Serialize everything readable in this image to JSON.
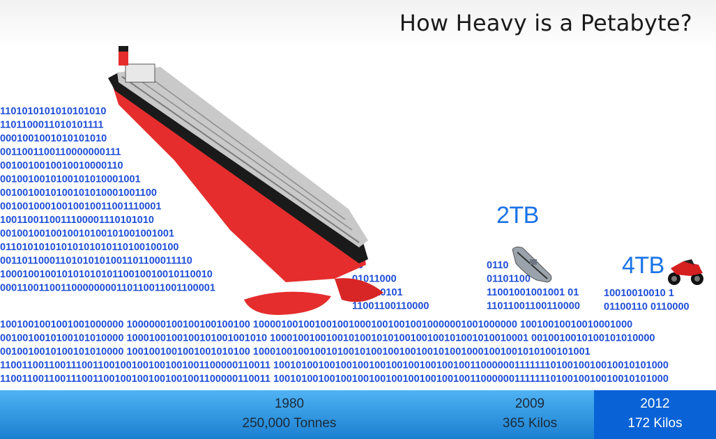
{
  "title": "How Heavy is a Petabyte?",
  "binary_lines": {
    "left": [
      "1101010101010101010",
      "1101100011010101111",
      "0001001001010101010",
      "0011001100110000000111",
      "0010010010010010000110",
      "0010010010100101010001001",
      "0010010010100101010001001100",
      "00100100010010010011001110001",
      "1001100110011100001110101010",
      "0010010010010010100101001001001",
      "01101010101010101010110100100100",
      "00110110001101010101001101100011110",
      "10001001001010101010110010010010110010",
      "000110011001100000000110110011001100001"
    ],
    "mid_right": [
      "10",
      "01011000",
      "001010101",
      "11001100110000"
    ],
    "mid_2009": [
      "0110",
      "01101100",
      "11001001001001 01",
      "11011001100110000"
    ],
    "right_2012": [
      "10010010010 1",
      "01100110 0110000"
    ],
    "full": [
      "1001001001001001000000 1000000100100100100100 10000100100100100100010010010010000001001000000 10010010010010001000",
      "0010010010100101010000 1000100100100101001001010 1000100100100101001010100100100101001010010001 0010010010100101010000",
      "0010010010100101010000 1001001001001001010100 100010010010010100101001001001001010010001001001010100101001",
      "1100110011001110011001001001001001001100000110011 10010100100100100100100100100100100110000001111111010010010010010101000",
      "1100110011001110011001001001001001001100000110011 10010100100100100100100100100100100110000001111111010010010010010101000"
    ]
  },
  "capacities": [
    "2TB",
    "4TB"
  ],
  "timeline": [
    {
      "year": "1980",
      "weight": "250,000 Tonnes",
      "active": false
    },
    {
      "year": "2009",
      "weight": "365 Kilos",
      "active": false
    },
    {
      "year": "2012",
      "weight": "172 Kilos",
      "active": true
    }
  ],
  "colors": {
    "binary": "#1f4fd8",
    "capacity": "#1a73e8",
    "hull_red": "#e03030",
    "footer_active": "#0a63d6"
  },
  "icons": {
    "ship": "oil-tanker-icon",
    "boat": "inflatable-boat-icon",
    "bike": "motorcycle-icon"
  }
}
